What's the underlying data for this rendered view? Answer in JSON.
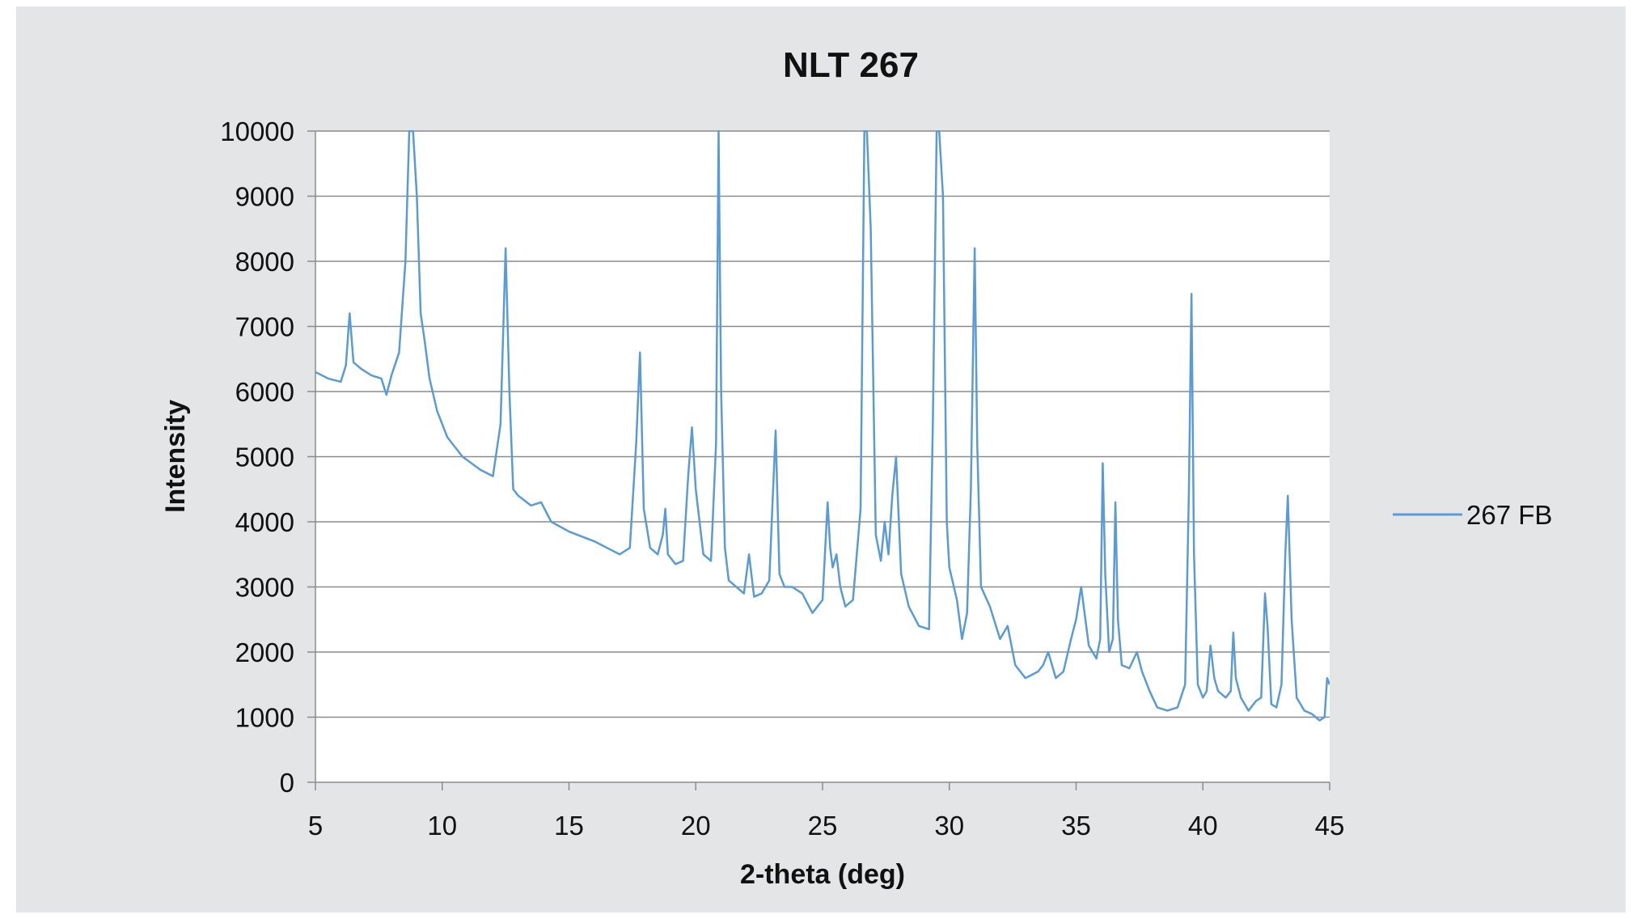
{
  "colors": {
    "page_background": "#ffffff",
    "chart_background": "#e4e5e6",
    "plot_background": "#ffffff",
    "gridline": "#8c8c8c",
    "series_line": "#5b9bd5",
    "text": "#111111"
  },
  "chart_data": {
    "type": "line",
    "title": "NLT 267",
    "xlabel": "2-theta (deg)",
    "ylabel": "Intensity",
    "xlim": [
      5,
      45
    ],
    "ylim": [
      0,
      10000
    ],
    "xticks": [
      5,
      10,
      15,
      20,
      25,
      30,
      35,
      40,
      45
    ],
    "yticks": [
      0,
      1000,
      2000,
      3000,
      4000,
      5000,
      6000,
      7000,
      8000,
      9000,
      10000
    ],
    "grid": "horizontal",
    "legend_position": "right",
    "series": [
      {
        "name": "267 FB",
        "x": [
          5.0,
          5.5,
          6.0,
          6.2,
          6.35,
          6.5,
          6.8,
          7.2,
          7.6,
          7.8,
          8.0,
          8.3,
          8.55,
          8.7,
          8.85,
          9.0,
          9.15,
          9.3,
          9.5,
          9.8,
          10.2,
          10.8,
          11.5,
          12.0,
          12.3,
          12.5,
          12.65,
          12.8,
          13.0,
          13.5,
          13.9,
          14.3,
          15.0,
          16.0,
          17.0,
          17.4,
          17.65,
          17.8,
          17.95,
          18.2,
          18.5,
          18.7,
          18.8,
          18.9,
          19.2,
          19.5,
          19.7,
          19.85,
          20.0,
          20.3,
          20.6,
          20.8,
          20.9,
          21.0,
          21.15,
          21.3,
          21.6,
          21.9,
          22.1,
          22.3,
          22.6,
          22.9,
          23.05,
          23.15,
          23.3,
          23.5,
          23.8,
          24.2,
          24.6,
          25.0,
          25.2,
          25.3,
          25.4,
          25.55,
          25.7,
          25.9,
          26.2,
          26.5,
          26.65,
          26.75,
          26.9,
          27.1,
          27.3,
          27.45,
          27.6,
          27.75,
          27.9,
          28.1,
          28.4,
          28.8,
          29.2,
          29.35,
          29.5,
          29.6,
          29.75,
          29.9,
          30.0,
          30.3,
          30.5,
          30.7,
          30.85,
          31.0,
          31.1,
          31.25,
          31.6,
          32.0,
          32.3,
          32.6,
          33.0,
          33.5,
          33.7,
          33.9,
          34.2,
          34.5,
          34.8,
          35.0,
          35.2,
          35.5,
          35.8,
          35.95,
          36.05,
          36.15,
          36.3,
          36.45,
          36.55,
          36.65,
          36.8,
          37.1,
          37.4,
          37.6,
          37.9,
          38.2,
          38.6,
          39.0,
          39.3,
          39.45,
          39.55,
          39.65,
          39.8,
          40.0,
          40.15,
          40.3,
          40.45,
          40.6,
          40.9,
          41.1,
          41.2,
          41.3,
          41.5,
          41.8,
          42.1,
          42.3,
          42.45,
          42.55,
          42.7,
          42.9,
          43.1,
          43.25,
          43.35,
          43.5,
          43.7,
          44.0,
          44.3,
          44.6,
          44.8,
          44.9,
          45.0
        ],
        "y": [
          6300,
          6200,
          6150,
          6400,
          7200,
          6450,
          6350,
          6250,
          6200,
          5950,
          6250,
          6600,
          8000,
          10000,
          10000,
          9000,
          7200,
          6800,
          6200,
          5700,
          5300,
          5000,
          4800,
          4700,
          5500,
          8200,
          6000,
          4500,
          4400,
          4250,
          4300,
          4000,
          3850,
          3700,
          3500,
          3600,
          5200,
          6600,
          4200,
          3600,
          3500,
          3800,
          4200,
          3500,
          3350,
          3400,
          4700,
          5450,
          4500,
          3500,
          3400,
          5200,
          10000,
          6000,
          3600,
          3100,
          3000,
          2900,
          3500,
          2850,
          2900,
          3100,
          4500,
          5400,
          3200,
          3000,
          3000,
          2900,
          2600,
          2800,
          4300,
          3600,
          3300,
          3500,
          3000,
          2700,
          2800,
          4200,
          10000,
          10000,
          8500,
          3800,
          3400,
          4000,
          3500,
          4400,
          5000,
          3200,
          2700,
          2400,
          2350,
          5500,
          10000,
          10000,
          9000,
          4000,
          3300,
          2800,
          2200,
          2600,
          4500,
          8200,
          5200,
          3000,
          2700,
          2200,
          2400,
          1800,
          1600,
          1700,
          1800,
          2000,
          1600,
          1700,
          2200,
          2500,
          3000,
          2100,
          1900,
          2200,
          4900,
          3200,
          2000,
          2200,
          4300,
          2500,
          1800,
          1750,
          2000,
          1700,
          1400,
          1150,
          1100,
          1150,
          1500,
          4500,
          7500,
          3500,
          1500,
          1300,
          1400,
          2100,
          1600,
          1400,
          1300,
          1400,
          2300,
          1600,
          1300,
          1100,
          1250,
          1300,
          2900,
          2400,
          1200,
          1150,
          1500,
          3500,
          4400,
          2500,
          1300,
          1100,
          1050,
          950,
          1000,
          1600,
          1500
        ]
      }
    ]
  }
}
